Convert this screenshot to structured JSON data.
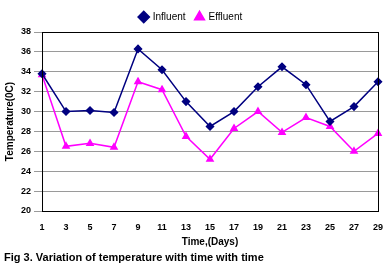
{
  "chart_data": {
    "type": "line",
    "title": "Fig 3. Variation of temperature with time with time",
    "x_label": "Time,(Days)",
    "y_label": "Temperature(0C)",
    "categories": [
      "1",
      "3",
      "5",
      "7",
      "9",
      "11",
      "13",
      "15",
      "17",
      "19",
      "21",
      "23",
      "25",
      "27",
      "29"
    ],
    "series": [
      {
        "name": "Influent",
        "color": "#000080",
        "marker": "diamond",
        "line_style": "solid",
        "values": [
          33.8,
          30,
          30.1,
          29.9,
          36.3,
          34.2,
          31,
          28.5,
          30,
          32.5,
          34.5,
          32.7,
          29,
          30.5,
          33
        ]
      },
      {
        "name": "Effluent",
        "color": "#ff00ff",
        "marker": "triangle",
        "line_style": "solid",
        "values": [
          33.7,
          26.5,
          26.8,
          26.4,
          33,
          32.2,
          27.5,
          25.2,
          28.3,
          30,
          27.9,
          29.4,
          28.5,
          26,
          27.8
        ]
      }
    ],
    "ylim": [
      20,
      38
    ],
    "yticks": [
      20,
      22,
      24,
      26,
      28,
      30,
      32,
      34,
      36,
      38
    ],
    "grid": true,
    "legend": "top"
  }
}
